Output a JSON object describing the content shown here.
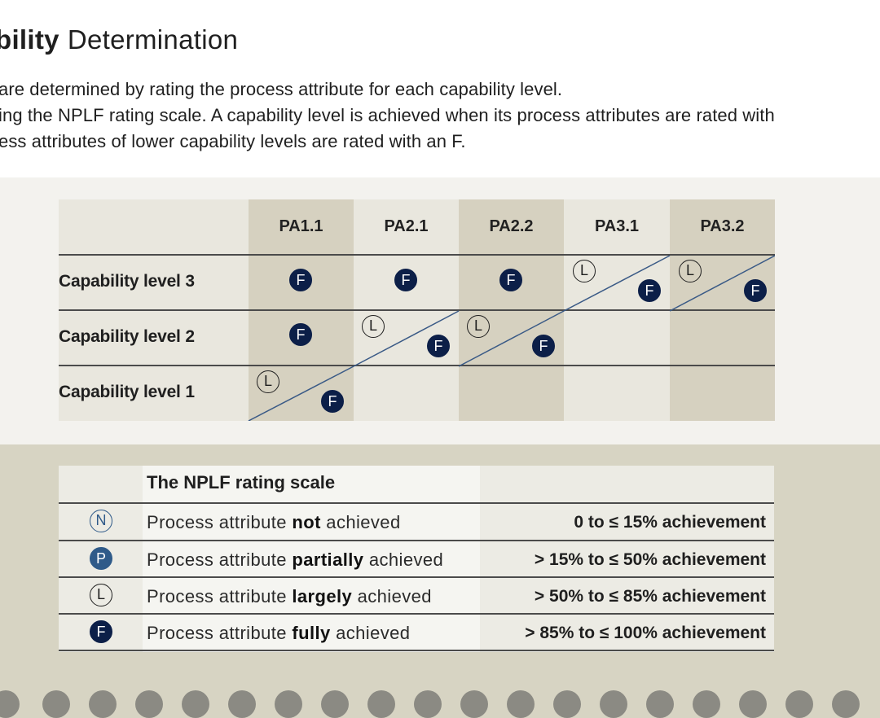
{
  "title": {
    "bold": "bility",
    "rest": "Determination"
  },
  "intro": [
    "are determined by rating the process attribute for each capability level.",
    "ing the NPLF rating scale. A capability level is achieved when its process attributes are rated with",
    "ess attributes of lower capability levels are rated with an F."
  ],
  "grid": {
    "columns": [
      "PA1.1",
      "PA2.1",
      "PA2.2",
      "PA3.1",
      "PA3.2"
    ],
    "rows": [
      "Capability level 3",
      "Capability level 2",
      "Capability level 1"
    ],
    "ratings": {
      "level3": [
        "F",
        "F",
        "F",
        "L/F",
        "L/F"
      ],
      "level2": [
        "F",
        "L/F",
        "L/F",
        "",
        ""
      ],
      "level1": [
        "L/F",
        "",
        "",
        "",
        ""
      ]
    }
  },
  "badges": {
    "F": "F",
    "L": "L",
    "N": "N",
    "P": "P"
  },
  "scale": {
    "heading": "The NPLF rating scale",
    "rows": [
      {
        "code": "N",
        "pre": "Process attribute ",
        "bold": "not",
        "post": " achieved",
        "value": "0 to ≤ 15% achievement"
      },
      {
        "code": "P",
        "pre": "Process attribute ",
        "bold": "partially",
        "post": " achieved",
        "value": "> 15% to ≤ 50% achievement"
      },
      {
        "code": "L",
        "pre": "Process attribute ",
        "bold": "largely",
        "post": " achieved",
        "value": "> 50% to ≤ 85% achievement"
      },
      {
        "code": "F",
        "pre": "Process attribute ",
        "bold": "fully",
        "post": " achieved",
        "value": "> 85% to ≤ 100% achievement"
      }
    ]
  },
  "colors": {
    "navy": "#0c1f48",
    "blue": "#2f5a89",
    "tan": "#d6d1c0",
    "beige": "#e9e7de"
  }
}
